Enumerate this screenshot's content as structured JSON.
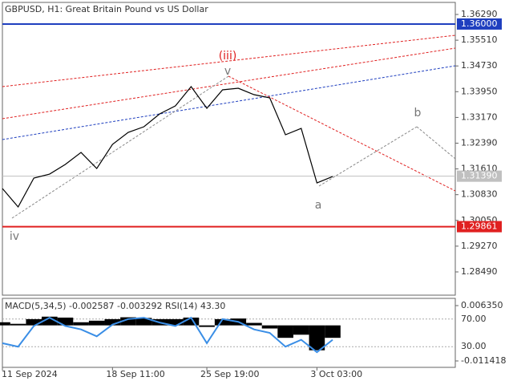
{
  "chart_data": {
    "type": "line",
    "title": "GBPUSD, H1:  Great Britain Pound vs US Dollar",
    "categories": [
      "11 Sep 2024",
      null,
      null,
      null,
      null,
      null,
      null,
      "18 Sep 11:00",
      null,
      null,
      null,
      null,
      null,
      "25 Sep 19:00",
      null,
      null,
      null,
      null,
      null,
      null,
      "3 Oct 03:00",
      null
    ],
    "series": [
      {
        "name": "GBPUSD",
        "color": "#000000",
        "values": [
          1.31017,
          1.30458,
          1.31333,
          1.31454,
          1.31746,
          1.3211,
          1.31624,
          1.32353,
          1.32718,
          1.32888,
          1.33277,
          1.3352,
          1.34103,
          1.33447,
          1.34006,
          1.34054,
          1.3386,
          1.33763,
          1.32645,
          1.32839,
          1.31187,
          1.31381
        ]
      }
    ],
    "ylim": [
      1.27785,
      1.36655
    ],
    "yticks": [
      {
        "value": 1.3629,
        "label": "1.36290"
      },
      {
        "value": 1.3551,
        "label": "1.35510"
      },
      {
        "value": 1.3473,
        "label": "1.34730"
      },
      {
        "value": 1.3395,
        "label": "1.33950"
      },
      {
        "value": 1.3317,
        "label": "1.33170"
      },
      {
        "value": 1.3239,
        "label": "1.32390"
      },
      {
        "value": 1.3161,
        "label": "1.31610"
      },
      {
        "value": 1.3083,
        "label": "1.30830"
      },
      {
        "value": 1.3005,
        "label": "1.30050"
      },
      {
        "value": 1.2927,
        "label": "1.29270"
      },
      {
        "value": 1.2849,
        "label": "1.28490"
      }
    ],
    "levels": [
      {
        "value": 1.36,
        "label": "1.36000",
        "color": "#1f3fbf"
      },
      {
        "value": 1.29861,
        "label": "1.29861",
        "color": "#e02020"
      },
      {
        "value": 1.3139,
        "label": "1.31390",
        "color": "#c0c0c0"
      }
    ],
    "annotations": [
      "(iii)",
      "v",
      "iv",
      "a",
      "b"
    ],
    "indicator": {
      "title": "MACD(5,34,5) -0.002587 -0.003292 RSI(14) 43.30",
      "macd": [
        0.001,
        0.0005,
        0.002,
        0.0028,
        0.0025,
        0.001,
        0.0015,
        0.002,
        0.0026,
        0.0024,
        0.002,
        0.002,
        0.0025,
        -0.0005,
        0.002,
        0.0022,
        0.0008,
        -0.001,
        -0.004,
        -0.003,
        -0.008,
        -0.004
      ],
      "macd_color": "#000000",
      "ylim": [
        -0.01348,
        0.00867
      ],
      "yticks": [
        {
          "value": 0.00635,
          "label": "0.006350"
        },
        {
          "value": -0.011418,
          "label": "-0.011418"
        }
      ],
      "rsi": [
        35,
        30,
        60,
        72,
        60,
        55,
        45,
        62,
        70,
        72,
        65,
        60,
        72,
        35,
        70,
        66,
        55,
        50,
        30,
        40,
        22,
        40
      ],
      "rsi_color": "#3a8ee6",
      "rsi_ylim": [
        0,
        100
      ],
      "rsi_ticks": [
        {
          "value": 70,
          "label": "70.00"
        },
        {
          "value": 30,
          "label": "30.00"
        }
      ]
    }
  }
}
